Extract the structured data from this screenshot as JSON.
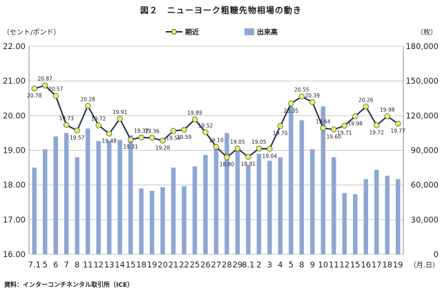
{
  "title": "図２　ニューヨーク粗糖先物相場の動き",
  "source": "資料：インターコンチネンタル取引所（ICE）",
  "chart_data": {
    "type": "bar+line",
    "left_unit": "（セント/ポンド）",
    "right_unit": "（枚）",
    "x_unit": "（月.日）",
    "left_axis": {
      "min": 16,
      "max": 22,
      "ticks": [
        "16.00",
        "17.00",
        "18.00",
        "19.00",
        "20.00",
        "21.00",
        "22.00"
      ]
    },
    "right_axis": {
      "min": 0,
      "max": 180000,
      "ticks": [
        "0",
        "30,000",
        "60,000",
        "90,000",
        "120,000",
        "150,000",
        "180,000"
      ]
    },
    "grid": true,
    "legend": [
      {
        "name": "期近",
        "kind": "line"
      },
      {
        "name": "出来高",
        "kind": "bar"
      }
    ],
    "legend_placement": "top",
    "colors": {
      "line": "#1f2f4f",
      "marker": "#e8f060",
      "bar": "#8ea6d4",
      "grid": "#c8c8c8"
    },
    "categories": [
      "7.1",
      "5",
      "6",
      "7",
      "8",
      "11",
      "12",
      "13",
      "14",
      "15",
      "18",
      "19",
      "20",
      "21",
      "22",
      "25",
      "26",
      "27",
      "28",
      "29",
      "8.1",
      "2",
      "3",
      "4",
      "5",
      "8",
      "9",
      "10",
      "11",
      "12",
      "15",
      "16",
      "17",
      "18",
      "19"
    ],
    "series": [
      {
        "name": "期近",
        "axis": "left",
        "values": [
          20.78,
          20.87,
          20.57,
          19.73,
          19.57,
          20.28,
          19.72,
          19.48,
          19.91,
          19.31,
          19.37,
          19.36,
          19.28,
          19.56,
          19.59,
          19.89,
          19.52,
          19.1,
          18.8,
          19.05,
          18.81,
          19.05,
          19.04,
          19.7,
          20.35,
          20.55,
          20.39,
          19.64,
          19.6,
          19.71,
          19.98,
          20.26,
          19.72,
          19.98,
          19.77
        ],
        "labels": [
          "20.78",
          "20.87",
          "20.57",
          "19.73",
          "19.57",
          "20.28",
          "19.72",
          "19.48",
          "19.91",
          "19.31",
          "19.37",
          "19.36",
          "19.28",
          "19.56",
          "19.59",
          "19.89",
          "19.52",
          "19.10",
          "18.80",
          "19.05",
          "18.81",
          "19.05",
          "19.04",
          "19.70",
          "20.35",
          "20.55",
          "20.39",
          "19.64",
          "19.60",
          "19.71",
          "19.98",
          "20.26",
          "19.72",
          "19.98",
          "19.77"
        ]
      },
      {
        "name": "出来高",
        "axis": "right",
        "values": [
          75000,
          91000,
          102000,
          105000,
          84000,
          109000,
          98000,
          98000,
          99000,
          103000,
          57000,
          55000,
          58000,
          75000,
          59000,
          76000,
          86000,
          92000,
          105000,
          90000,
          77000,
          87000,
          81000,
          84000,
          128000,
          116000,
          91000,
          128000,
          84000,
          53000,
          52000,
          65000,
          73000,
          68000,
          65000
        ]
      }
    ]
  }
}
